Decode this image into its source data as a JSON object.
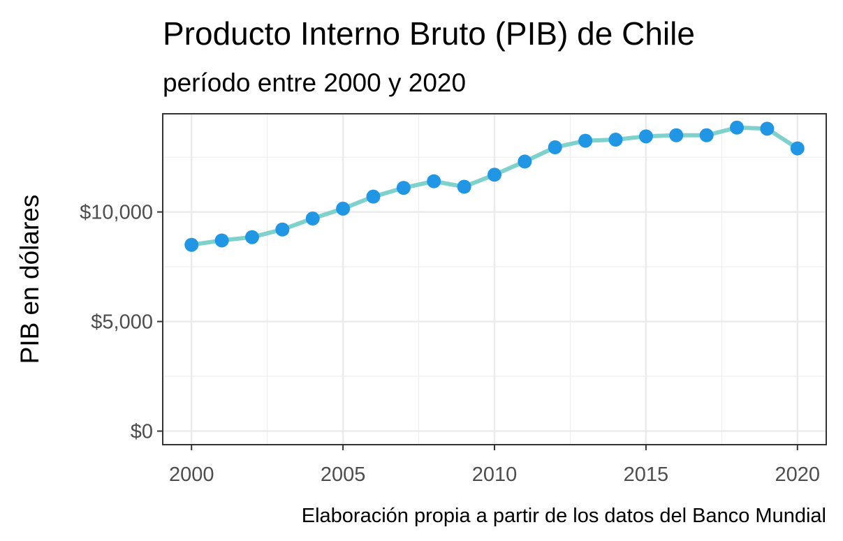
{
  "chart_data": {
    "type": "line",
    "title": "Producto Interno Bruto (PIB) de Chile",
    "subtitle": "período entre 2000 y 2020",
    "xlabel": "",
    "ylabel": "PIB en dólares",
    "caption": "Elaboración propia a partir de los datos del Banco Mundial",
    "x": [
      2000,
      2001,
      2002,
      2003,
      2004,
      2005,
      2006,
      2007,
      2008,
      2009,
      2010,
      2011,
      2012,
      2013,
      2014,
      2015,
      2016,
      2017,
      2018,
      2019,
      2020
    ],
    "series": [
      {
        "values": [
          8500,
          8700,
          8850,
          9200,
          9700,
          10150,
          10700,
          11100,
          11400,
          11150,
          11700,
          12300,
          12950,
          13250,
          13300,
          13450,
          13500,
          13500,
          13850,
          13800,
          12900
        ]
      }
    ],
    "xticks": [
      2000,
      2005,
      2010,
      2015,
      2020
    ],
    "xtick_labels": [
      "2000",
      "2005",
      "2010",
      "2015",
      "2020"
    ],
    "yticks": [
      0,
      5000,
      10000
    ],
    "ytick_labels": [
      "$0",
      "$5,000",
      "$10,000"
    ],
    "xlim": [
      1999.05,
      2020.95
    ],
    "ylim": [
      -620,
      14480
    ],
    "grid": true,
    "line_color": "#7fd1cc",
    "point_color": "#2196e5",
    "panel_border_color": "#333333",
    "grid_color": "#ebebeb"
  }
}
